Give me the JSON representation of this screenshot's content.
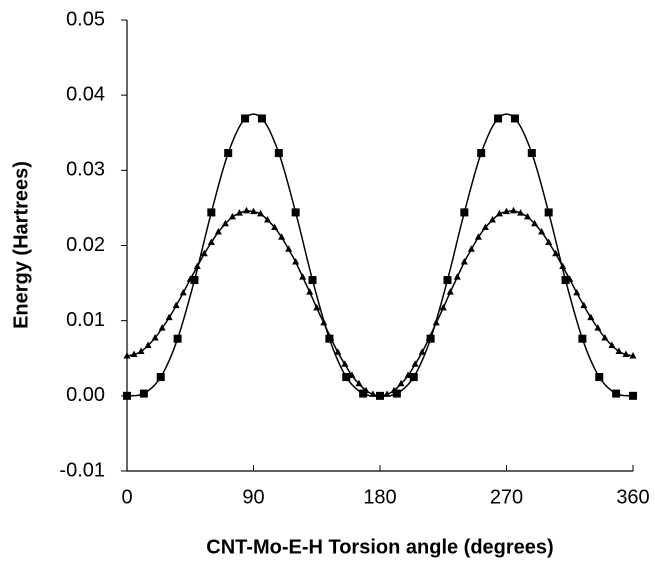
{
  "chart_data": {
    "type": "line",
    "xlabel": "CNT-Mo-E-H Torsion angle (degrees)",
    "ylabel": "Energy (Hartrees)",
    "xlim": [
      0,
      360
    ],
    "xticks": [
      0,
      90,
      180,
      270,
      360
    ],
    "ylim": [
      -0.01,
      0.05
    ],
    "yticks": [
      -0.01,
      {
        "value": 0,
        "label": "0.00"
      },
      0.01,
      0.02,
      0.03,
      0.04,
      0.05
    ],
    "grid": false,
    "series": [
      {
        "color": "#000000",
        "marker": "square",
        "x": [
          0,
          12,
          24,
          36,
          48,
          60,
          72,
          84,
          96,
          108,
          120,
          132,
          144,
          156,
          168,
          180,
          192,
          204,
          216,
          228,
          240,
          252,
          264,
          276,
          288,
          300,
          312,
          324,
          336,
          348,
          360
        ],
        "values": [
          0,
          0.0003,
          0.0025,
          0.0076,
          0.0154,
          0.0244,
          0.0323,
          0.0369,
          0.0369,
          0.0323,
          0.0244,
          0.0154,
          0.0076,
          0.0025,
          0.0003,
          0,
          0.0003,
          0.0025,
          0.0076,
          0.0154,
          0.0244,
          0.0323,
          0.0369,
          0.0369,
          0.0323,
          0.0244,
          0.0154,
          0.0076,
          0.0025,
          0.0003,
          0
        ]
      },
      {
        "color": "#000000",
        "marker": "triangle",
        "x": [
          0,
          5,
          10,
          15,
          20,
          25,
          30,
          35,
          40,
          45,
          50,
          55,
          60,
          65,
          70,
          75,
          80,
          85,
          90,
          95,
          100,
          105,
          110,
          115,
          120,
          125,
          130,
          135,
          140,
          145,
          150,
          155,
          160,
          165,
          170,
          175,
          180,
          185,
          190,
          195,
          200,
          205,
          210,
          215,
          220,
          225,
          230,
          235,
          240,
          245,
          250,
          255,
          260,
          265,
          270,
          275,
          280,
          285,
          290,
          295,
          300,
          305,
          310,
          315,
          320,
          325,
          330,
          335,
          340,
          345,
          350,
          355,
          360
        ],
        "values": [
          0.0053,
          0.0055,
          0.0059,
          0.0067,
          0.0077,
          0.009,
          0.0104,
          0.012,
          0.0137,
          0.0155,
          0.0172,
          0.0189,
          0.0204,
          0.0218,
          0.0229,
          0.0238,
          0.0243,
          0.0246,
          0.0245,
          0.0242,
          0.0234,
          0.0224,
          0.0211,
          0.0195,
          0.0178,
          0.0158,
          0.0138,
          0.0117,
          0.0097,
          0.0077,
          0.0058,
          0.0042,
          0.0027,
          0.0016,
          0.0007,
          0.0002,
          0,
          0.0002,
          0.0007,
          0.0016,
          0.0027,
          0.0042,
          0.0058,
          0.0077,
          0.0097,
          0.0117,
          0.0138,
          0.0158,
          0.0178,
          0.0195,
          0.0211,
          0.0224,
          0.0234,
          0.0242,
          0.0245,
          0.0246,
          0.0243,
          0.0238,
          0.0229,
          0.0218,
          0.0204,
          0.0189,
          0.0172,
          0.0155,
          0.0137,
          0.012,
          0.0104,
          0.009,
          0.0077,
          0.0067,
          0.0059,
          0.0055,
          0.0053
        ]
      }
    ]
  }
}
